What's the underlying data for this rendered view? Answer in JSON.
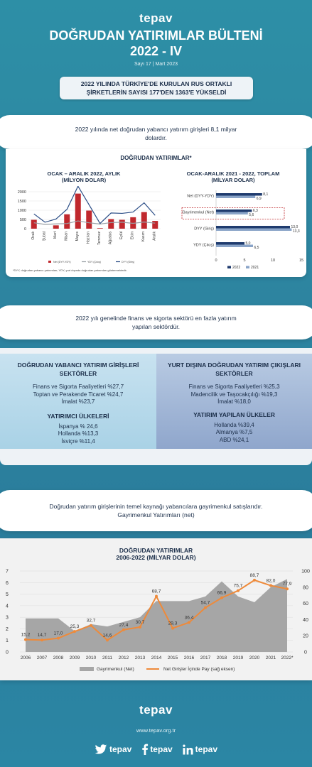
{
  "header": {
    "logo": "tepav",
    "title_line1": "DOĞRUDAN YATIRIMLAR BÜLTENİ",
    "title_line2": "2022 - IV",
    "issue": "Sayı 17 | Mart 2023",
    "headline_line1": "2022 YILINDA TÜRKİYE'DE KURULAN RUS ORTAKLI",
    "headline_line2": "ŞİRKETLERİN SAYISI 177'DEN 1363'E YÜKSELDİ"
  },
  "section1": {
    "lead_line1": "2022 yılında net doğrudan yabancı yatırım girişleri 8,1 milyar",
    "lead_line2": "dolardır.",
    "box_title": "DOĞRUDAN YATIRIMLAR*",
    "monthly_title_line1": "OCAK – ARALIK 2022, AYLIK",
    "monthly_title_line2": "(MİLYON DOLAR)",
    "total_title_line1": "OCAK-ARALIK 2021 - 2022, TOPLAM",
    "total_title_line2": "(MİLYAR DOLAR)",
    "footnote": "*DYY, doğrudan yabancı yatırımları; YDY, yurt dışında doğrudan yatırımları göstermektedir."
  },
  "section2": {
    "lead_line1": "2022 yılı genelinde finans ve sigorta sektörü en fazla yatırım",
    "lead_line2": "yapılan sektördür.",
    "left": {
      "title_line1": "DOĞRUDAN YABANCI YATIRIM GİRİŞLERİ",
      "title_line2": "SEKTÖRLER",
      "sectors": [
        "Finans ve Sigorta Faaliyetleri %27,7",
        "Toptan ve Perakende Ticaret %24,7",
        "İmalat %23,7"
      ],
      "countries_title": "YATIRIMCI ÜLKELERİ",
      "countries": [
        "İspanya % 24,6",
        "Hollanda %13,3",
        "İsviçre %11,4"
      ]
    },
    "right": {
      "title_line1": "YURT DIŞINA DOĞRUDAN YATIRIM ÇIKIŞLARI",
      "title_line2": "SEKTÖRLER",
      "sectors": [
        "Finans ve Sigorta Faaliyetleri %25,3",
        "Madencilik ve Taşocakçılığı %19,3",
        "İmalat %18,0"
      ],
      "countries_title": "YATIRIM YAPILAN ÜLKELER",
      "countries": [
        "Hollanda %39,4",
        "Almanya %7,5",
        "ABD %24,1"
      ]
    }
  },
  "section3": {
    "lead_line1": "Doğrudan yatırım girişlerinin temel kaynağı yabancılara gayrimenkul satışlarıdır.",
    "lead_line2": "Gayrimenkul Yatırımları (net)",
    "chart_title_line1": "DOĞRUDAN YATIRIMLAR",
    "chart_title_line2": "2006-2022 (MİLYAR DOLAR)"
  },
  "footer": {
    "logo": "tepav",
    "url": "www.tepav.org.tr",
    "twitter": "tepav",
    "facebook": "tepav",
    "linkedin": "tepav"
  },
  "colors": {
    "brand_teal": "#2d8fa6",
    "bar_red": "#c0282d",
    "line_blue": "#2b4d86",
    "line_gray": "#9aa0a6",
    "bar_navy": "#1f3b6e",
    "bar_light": "#8aa4c8",
    "area_gray": "#a6a6a6",
    "line_orange": "#ee8a3a"
  },
  "chart_data": [
    {
      "type": "bar",
      "categories": [
        "Ocak",
        "Şubat",
        "Mart",
        "Nisan",
        "Mayıs",
        "Haziran",
        "Temmuz",
        "Ağustos",
        "Eylül",
        "Ekim",
        "Kasım",
        "Aralık"
      ],
      "yticks": [
        "0",
        "500",
        "1000",
        "1500",
        "2000"
      ],
      "ylim": [
        0,
        2000
      ],
      "series": [
        {
          "name": "Net (DYY-YDY)",
          "kind": "bar",
          "values": [
            480,
            0,
            180,
            780,
            1900,
            980,
            30,
            520,
            480,
            620,
            900,
            420
          ]
        },
        {
          "name": "YDY (Çıkış)",
          "kind": "line",
          "values": [
            320,
            230,
            260,
            280,
            420,
            320,
            250,
            330,
            350,
            290,
            360,
            300
          ]
        },
        {
          "name": "DYY (Giriş)",
          "kind": "line",
          "values": [
            800,
            350,
            520,
            1050,
            2300,
            1300,
            280,
            850,
            830,
            900,
            1400,
            720
          ]
        }
      ]
    },
    {
      "type": "bar",
      "orientation": "horizontal",
      "categories": [
        "Net (DYY-YDY)",
        "Gayrimenkul (Net)",
        "DYY (Giriş)",
        "YDY (Çıkış)"
      ],
      "xticks": [
        "0",
        "5",
        "10",
        "15"
      ],
      "xlim": [
        0,
        15
      ],
      "series": [
        {
          "name": "2022",
          "values": [
            8.1,
            6.3,
            13.0,
            5.0
          ],
          "labels": [
            "8,1",
            "6,3",
            "13,0",
            "5,0"
          ]
        },
        {
          "name": "2021",
          "values": [
            6.9,
            5.6,
            13.3,
            6.5
          ],
          "labels": [
            "6,9",
            "5,6",
            "13,3",
            "6,5"
          ]
        }
      ]
    },
    {
      "type": "area",
      "x": [
        "2006",
        "2007",
        "2008",
        "2009",
        "2010",
        "2011",
        "2012",
        "2013",
        "2014",
        "2015",
        "2016",
        "2017",
        "2018",
        "2019",
        "2020",
        "2021",
        "2022*"
      ],
      "y_left_ticks": [
        "0",
        "1",
        "2",
        "3",
        "4",
        "5",
        "6",
        "7"
      ],
      "y_right_ticks": [
        "0",
        "20",
        "40",
        "60",
        "80",
        "100"
      ],
      "series": [
        {
          "name": "Gayrimenkul (Net)",
          "kind": "area",
          "axis": "left",
          "values": [
            2.9,
            2.9,
            2.9,
            1.8,
            2.4,
            2.2,
            2.6,
            3.0,
            4.4,
            4.4,
            4.4,
            4.8,
            6.1,
            4.8,
            4.3,
            5.6,
            6.3
          ]
        },
        {
          "name": "Net Girişler İçinde Pay (sağ eksen)",
          "kind": "line",
          "axis": "right",
          "values": [
            15.2,
            14.7,
            17.0,
            25.3,
            32.7,
            14.6,
            27.4,
            30.7,
            68.7,
            29.3,
            36.4,
            54.7,
            66.9,
            75.7,
            88.7,
            82.0,
            77.9
          ],
          "labels": [
            "15,2",
            "14,7",
            "17,0",
            "25,3",
            "32,7",
            "14,6",
            "27,4",
            "30,7",
            "68,7",
            "29,3",
            "36,4",
            "54,7",
            "66,9",
            "75,7",
            "88,7",
            "82,0",
            "77,9"
          ]
        }
      ]
    }
  ]
}
